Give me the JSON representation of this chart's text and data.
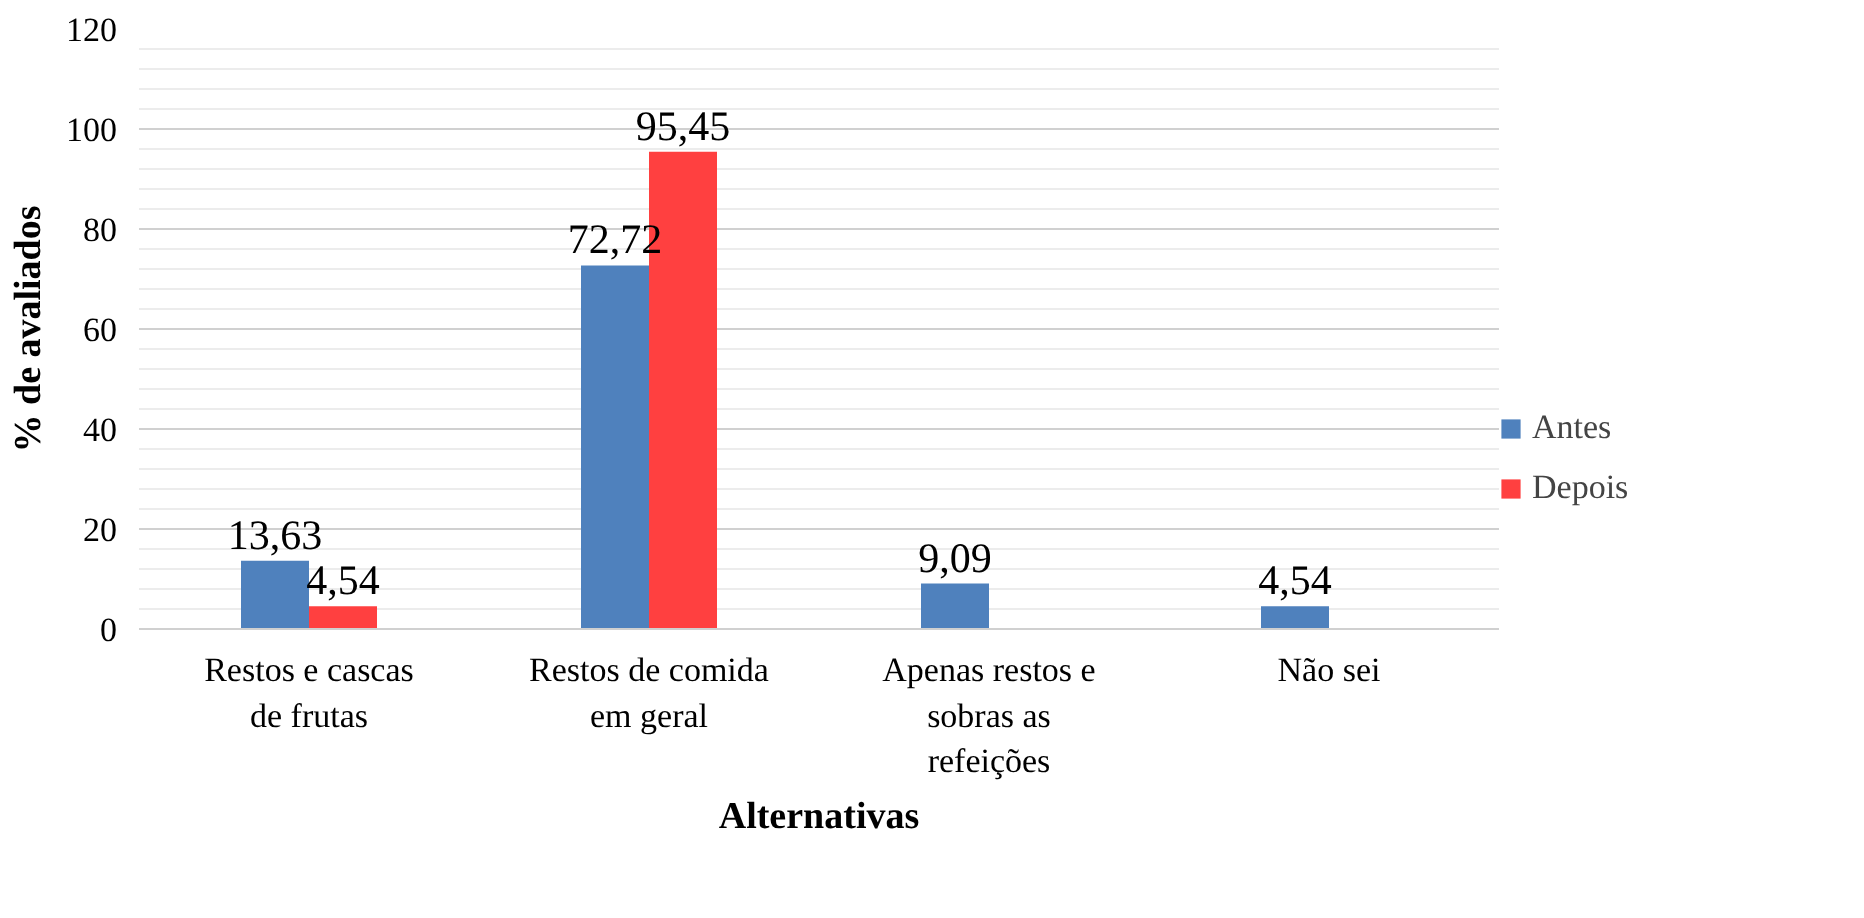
{
  "chart_data": {
    "type": "bar",
    "xlabel": "Alternativas",
    "ylabel": "% de avaliados",
    "categories": [
      "Restos e cascas de frutas",
      "Restos de comida em geral",
      "Apenas restos e sobras as refeições",
      "Não sei"
    ],
    "series": [
      {
        "name": "Antes",
        "color": "#4f81bd",
        "values": [
          13.63,
          72.72,
          9.09,
          4.54
        ],
        "value_labels": [
          "13,63",
          "72,72",
          "9,09",
          "4,54"
        ]
      },
      {
        "name": "Depois",
        "color": "#ff4040",
        "values": [
          4.54,
          95.45,
          null,
          null
        ],
        "value_labels": [
          "4,54",
          "95,45",
          null,
          null
        ]
      }
    ],
    "ylim": [
      0,
      120
    ],
    "yticks": [
      0,
      20,
      40,
      60,
      80,
      100,
      120
    ],
    "grid": "y",
    "legend": "right"
  }
}
